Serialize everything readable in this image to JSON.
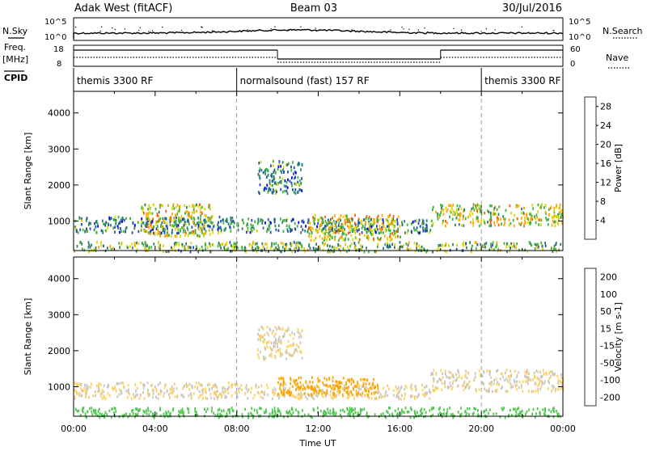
{
  "header": {
    "radar": "Adak West (fitACF)",
    "beam": "Beam 03",
    "date": "30/Jul/2016"
  },
  "panel_labels": {
    "nsky": "N.Sky",
    "nsearch": "N.Search",
    "freq": "Freq.",
    "freq_unit": "[MHz]",
    "nave": "Nave",
    "cpid": "CPID",
    "nsky_tick_top": "10^5",
    "nsky_tick_bottom": "10^0",
    "freq_tick_top": "18",
    "freq_tick_bottom": "8",
    "nave_tick_top": "60",
    "nave_tick_bottom": "0"
  },
  "cpid_segments": [
    {
      "label": "themis 3300 RF",
      "start_hour": 0
    },
    {
      "label": "normalsound (fast) 157 RF",
      "start_hour": 8
    },
    {
      "label": "themis 3300 RF",
      "start_hour": 20
    }
  ],
  "chart_data": [
    {
      "type": "heatmap",
      "name": "power",
      "ylabel": "Slant Range [km]",
      "xlim": [
        0,
        24
      ],
      "ylim": [
        180,
        4600
      ],
      "yticks": [
        1000,
        2000,
        3000,
        4000
      ],
      "colorbar": {
        "label": "Power [dB]",
        "ticks": [
          4,
          8,
          12,
          16,
          20,
          24,
          28
        ],
        "range": [
          0,
          30
        ],
        "colors": [
          "#0000ee",
          "#1f4faa",
          "#2e7f6a",
          "#3fb23f",
          "#d8d800",
          "#ffa400",
          "#ff5a00",
          "#ee0000"
        ]
      },
      "echo_regions": [
        {
          "t0": 0.0,
          "t1": 8.0,
          "r0": 700,
          "r1": 1150,
          "level": 10
        },
        {
          "t0": 3.3,
          "t1": 6.8,
          "r0": 600,
          "r1": 1500,
          "level": 18
        },
        {
          "t0": 8.0,
          "t1": 17.5,
          "r0": 700,
          "r1": 1100,
          "level": 10
        },
        {
          "t0": 11.5,
          "t1": 16.0,
          "r0": 500,
          "r1": 1200,
          "level": 20
        },
        {
          "t0": 9.0,
          "t1": 11.2,
          "r0": 1800,
          "r1": 2700,
          "level": 10
        },
        {
          "t0": 17.5,
          "t1": 24.0,
          "r0": 900,
          "r1": 1500,
          "level": 18
        },
        {
          "t0": 0.0,
          "t1": 24.0,
          "r0": 180,
          "r1": 450,
          "level": 14
        }
      ]
    },
    {
      "type": "heatmap",
      "name": "velocity",
      "xlabel": "Time UT",
      "ylabel": "Slant Range [km]",
      "xlim": [
        0,
        24
      ],
      "ylim": [
        180,
        4600
      ],
      "xticks": [
        "00:00",
        "04:00",
        "08:00",
        "12:00",
        "16:00",
        "20:00",
        "00:00"
      ],
      "yticks": [
        1000,
        2000,
        3000,
        4000
      ],
      "colorbar": {
        "label": "Velocity [m s-1]",
        "ticks": [
          200,
          100,
          50,
          15,
          -15,
          -50,
          -100,
          -200
        ],
        "colors": [
          "#1f3aa0",
          "#2e7f6a",
          "#4ec84e",
          "#c8c8c0",
          "#ffd060",
          "#ffa400",
          "#ff6a00",
          "#ee0000"
        ]
      },
      "echo_regions": [
        {
          "t0": 0.0,
          "t1": 8.0,
          "r0": 700,
          "r1": 1150,
          "level": 0
        },
        {
          "t0": 8.0,
          "t1": 17.5,
          "r0": 700,
          "r1": 1100,
          "level": 0
        },
        {
          "t0": 10.0,
          "t1": 15.0,
          "r0": 800,
          "r1": 1300,
          "level": -60
        },
        {
          "t0": 9.0,
          "t1": 11.2,
          "r0": 1800,
          "r1": 2700,
          "level": 0
        },
        {
          "t0": 17.5,
          "t1": 24.0,
          "r0": 900,
          "r1": 1500,
          "level": 0
        },
        {
          "t0": 0.0,
          "t1": 24.0,
          "r0": 180,
          "r1": 450,
          "level": 40
        }
      ]
    }
  ]
}
